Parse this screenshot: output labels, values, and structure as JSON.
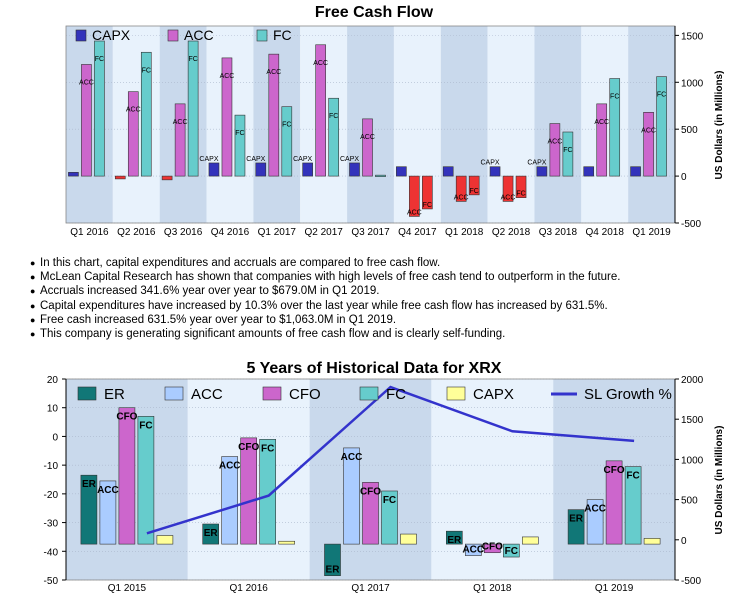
{
  "chart_data": [
    {
      "type": "bar",
      "title": "Free Cash Flow",
      "ylabel": "US Dollars (in Millions)",
      "ylim": [
        -500,
        1600
      ],
      "yticks": [
        -500,
        0,
        500,
        1000,
        1500
      ],
      "grid": true,
      "legend": "top-left",
      "categories": [
        "Q1 2016",
        "Q2 2016",
        "Q3 2016",
        "Q4 2016",
        "Q1 2017",
        "Q2 2017",
        "Q3 2017",
        "Q4 2017",
        "Q1 2018",
        "Q2 2018",
        "Q3 2018",
        "Q4 2018",
        "Q1 2019"
      ],
      "series": [
        {
          "name": "CAPX",
          "color": "#3333bb",
          "values": [
            40,
            -30,
            -40,
            140,
            140,
            140,
            140,
            100,
            100,
            100,
            100,
            100,
            100
          ],
          "labels": [
            "",
            "",
            "",
            "CAPX",
            "CAPX",
            "CAPX",
            "CAPX",
            "",
            "",
            "CAPX",
            "CAPX",
            "",
            ""
          ]
        },
        {
          "name": "ACC",
          "color": "#cc66cc",
          "values": [
            1190,
            900,
            770,
            1260,
            1300,
            1400,
            610,
            -430,
            -270,
            -270,
            560,
            770,
            680
          ],
          "labels": [
            "ACC",
            "ACC",
            "ACC",
            "ACC",
            "ACC",
            "ACC",
            "ACC",
            "ACC",
            "ACC",
            "ACC",
            "ACC",
            "ACC",
            "ACC"
          ]
        },
        {
          "name": "FC",
          "color": "#66cccc",
          "values": [
            1440,
            1320,
            1440,
            650,
            740,
            830,
            10,
            -350,
            -200,
            -230,
            470,
            1040,
            1060
          ],
          "labels": [
            "FC",
            "FC",
            "FC",
            "FC",
            "FC",
            "FC",
            "",
            "FC",
            "FC",
            "FC",
            "FC",
            "FC",
            "FC"
          ]
        }
      ],
      "negative_color": "#ee3333"
    },
    {
      "type": "bar",
      "title": "5 Years of Historical Data for XRX",
      "ylabel": "US Dollars (in Millions)",
      "ylim": [
        -50,
        20
      ],
      "yticks": [
        -50,
        -40,
        -30,
        -20,
        -10,
        0,
        10,
        20
      ],
      "y2lim": [
        -500,
        2000
      ],
      "y2ticks": [
        -500,
        0,
        500,
        1000,
        1500,
        2000
      ],
      "grid": true,
      "legend": "top",
      "categories": [
        "Q1 2015",
        "Q1 2016",
        "Q1 2017",
        "Q1 2018",
        "Q1 2019"
      ],
      "bar_baseline": -37.5,
      "series": [
        {
          "name": "ER",
          "color": "#117777",
          "values": [
            -13.5,
            -30.5,
            -48.5,
            -33,
            -25.5
          ]
        },
        {
          "name": "ACC",
          "color": "#aaccff",
          "values": [
            -15.5,
            -7,
            -4,
            -41.5,
            -22
          ]
        },
        {
          "name": "CFO",
          "color": "#cc66cc",
          "values": [
            10,
            -0.5,
            -16,
            -40.5,
            -8.5
          ]
        },
        {
          "name": "FC",
          "color": "#66cccc",
          "values": [
            7,
            -1,
            -19,
            -42,
            -10.5
          ]
        },
        {
          "name": "CAPX",
          "color": "#ffff99",
          "values": [
            -34.5,
            -36.5,
            -34,
            -35,
            -35.5
          ]
        },
        {
          "name": "SL Growth %",
          "type": "line",
          "axis": "right",
          "color": "#3333cc",
          "values": [
            80,
            550,
            1900,
            1350,
            1230
          ]
        }
      ]
    }
  ],
  "bullets": [
    "In this chart, capital expenditures and accruals are compared to free cash flow.",
    "McLean Capital Research has shown that companies with high levels of free cash tend to outperform in the future.",
    "Accruals increased 341.6% year over year to $679.0M in Q1 2019.",
    "Capital expenditures have increased by 10.3% over the last year while free cash flow has increased by 631.5%.",
    "Free cash increased 631.5% year over year to $1,063.0M in Q1 2019.",
    "This company is generating significant amounts of free cash flow and is clearly self-funding."
  ]
}
